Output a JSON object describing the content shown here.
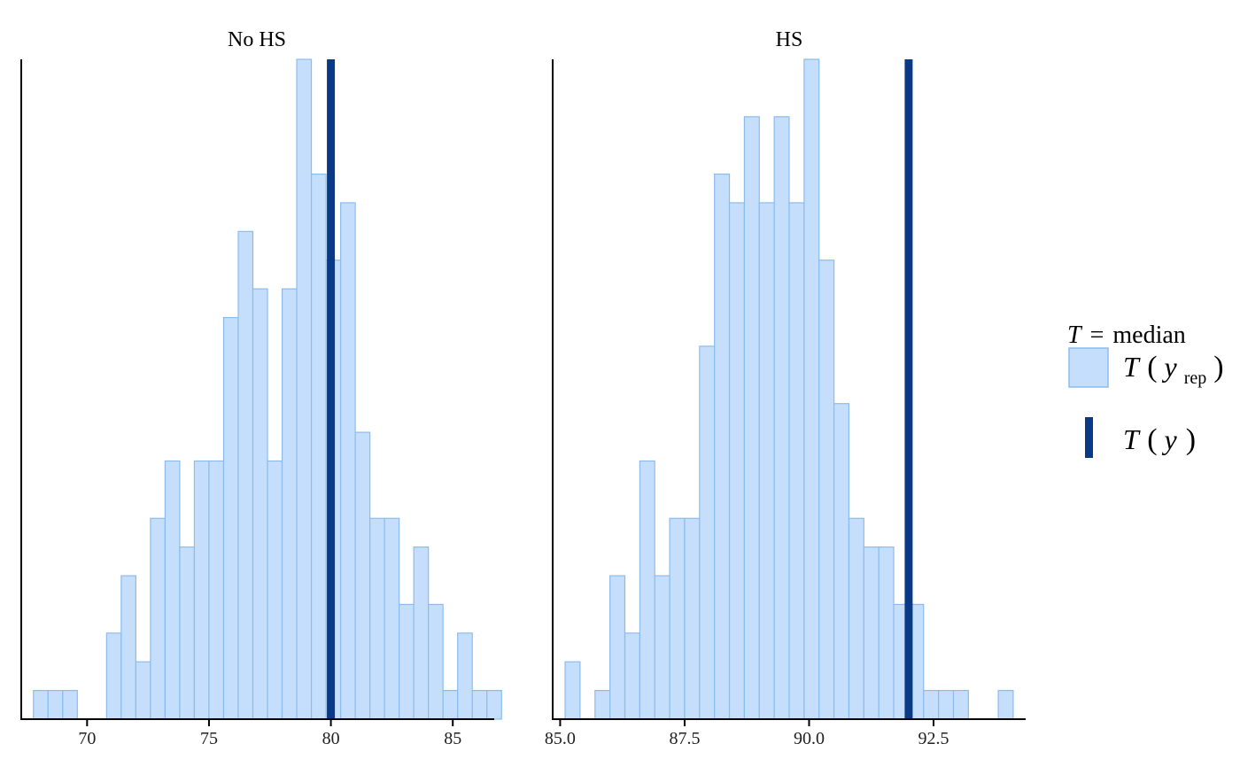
{
  "chart_data": [
    {
      "type": "bar",
      "panel_title": "No HS",
      "xlim": [
        67.3,
        86.7
      ],
      "xticks": [
        70,
        75,
        80,
        85
      ],
      "xtick_labels": [
        "70",
        "75",
        "80",
        "85"
      ],
      "bin_start": 67.8,
      "bin_width": 0.6,
      "counts": [
        1,
        1,
        1,
        0,
        0,
        3,
        5,
        2,
        7,
        9,
        6,
        9,
        9,
        14,
        17,
        15,
        9,
        15,
        23,
        19,
        16,
        18,
        10,
        7,
        7,
        4,
        6,
        4,
        1,
        3,
        1,
        1
      ],
      "observed": 80.0,
      "ymax": 23
    },
    {
      "type": "bar",
      "panel_title": "HS",
      "xlim": [
        84.85,
        94.35
      ],
      "xticks": [
        85.0,
        87.5,
        90.0,
        92.5
      ],
      "xtick_labels": [
        "85.0",
        "87.5",
        "90.0",
        "92.5"
      ],
      "bin_start": 85.1,
      "bin_width": 0.3,
      "counts": [
        2,
        0,
        1,
        5,
        3,
        9,
        5,
        7,
        7,
        13,
        19,
        18,
        21,
        18,
        21,
        18,
        23,
        16,
        11,
        7,
        6,
        6,
        4,
        4,
        1,
        1,
        1,
        0,
        0,
        1
      ],
      "observed": 92.0,
      "ymax": 23
    }
  ],
  "legend": {
    "title_T": "T",
    "title_eq": "=",
    "title_stat": "median",
    "item1_T": "T",
    "item1_y": "y",
    "item1_sub": "rep",
    "item2_T": "T",
    "item2_y": "y",
    "open_paren": "(",
    "close_paren": ")",
    "colors": {
      "rep_fill": "#c4defb",
      "rep_edge": "#8cbcef",
      "obs": "#0a3a87"
    }
  }
}
